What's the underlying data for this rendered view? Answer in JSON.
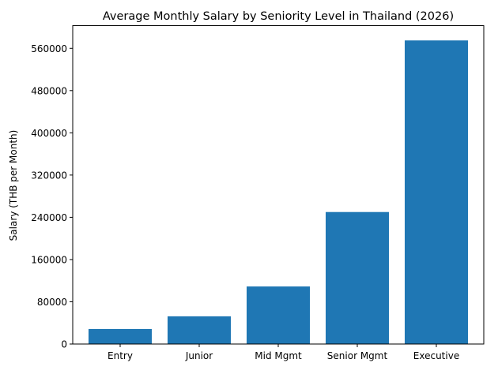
{
  "chart_data": {
    "type": "bar",
    "title": "Average Monthly Salary by Seniority Level in Thailand (2026)",
    "xlabel": "",
    "ylabel": "Salary (THB per Month)",
    "categories": [
      "Entry",
      "Junior",
      "Mid Mgmt",
      "Senior Mgmt",
      "Executive"
    ],
    "values": [
      28500,
      52500,
      109000,
      250000,
      575000
    ],
    "ylim": [
      0,
      603000
    ],
    "yticks": [
      0,
      80000,
      160000,
      240000,
      320000,
      400000,
      480000,
      560000
    ],
    "ytick_labels": [
      "0",
      "80000",
      "160000",
      "240000",
      "320000",
      "400000",
      "480000",
      "560000"
    ],
    "bar_color": "#1f77b4",
    "grid": false,
    "legend": null
  }
}
